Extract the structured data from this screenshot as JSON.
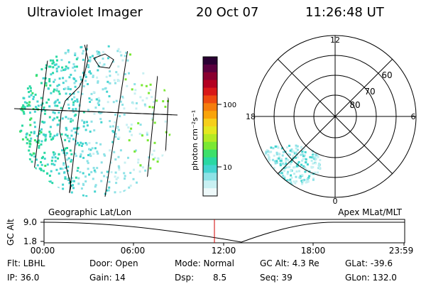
{
  "header": {
    "instrument": "Ultraviolet Imager",
    "date": "20 Oct 07",
    "time": "11:26:48 UT"
  },
  "colorbar": {
    "unit_label": "photon cm⁻²s⁻¹",
    "tick_labels": [
      "100",
      "10"
    ],
    "colors": [
      "#2a0033",
      "#5a003f",
      "#8a0030",
      "#b30020",
      "#d81818",
      "#ee4a10",
      "#f57d0c",
      "#f9a40a",
      "#f6cf1a",
      "#e4e820",
      "#b4ea24",
      "#7ae833",
      "#3de06a",
      "#2ad8a3",
      "#44d4d0",
      "#8de2e6",
      "#c8f0f2",
      "#eef9fa"
    ]
  },
  "geo_panel": {
    "caption": "Geographic Lat/Lon"
  },
  "polar_panel": {
    "caption": "Apex MLat/MLT",
    "mlt_labels": [
      "12",
      "18",
      "6",
      "0"
    ],
    "mlat_labels": [
      "60",
      "70",
      "80"
    ]
  },
  "timeline": {
    "ylabel": "GC Alt",
    "ytick_labels": [
      "9.0",
      "1.8"
    ],
    "xtick_labels": [
      "00:00",
      "06:00",
      "12:00",
      "18:00",
      "23:59"
    ]
  },
  "info": {
    "flt": "Flt: LBHL",
    "ip": "IP: 36.0",
    "door": "Door: Open",
    "gain": "Gain: 14",
    "mode": "Mode: Normal",
    "dsp_label": "Dsp:",
    "dsp_value": "8.5",
    "gcalt": "GC Alt: 4.3 Re",
    "seq": "Seq: 39",
    "glat": "GLat: -39.6",
    "glon": "GLon: 132.0"
  }
}
